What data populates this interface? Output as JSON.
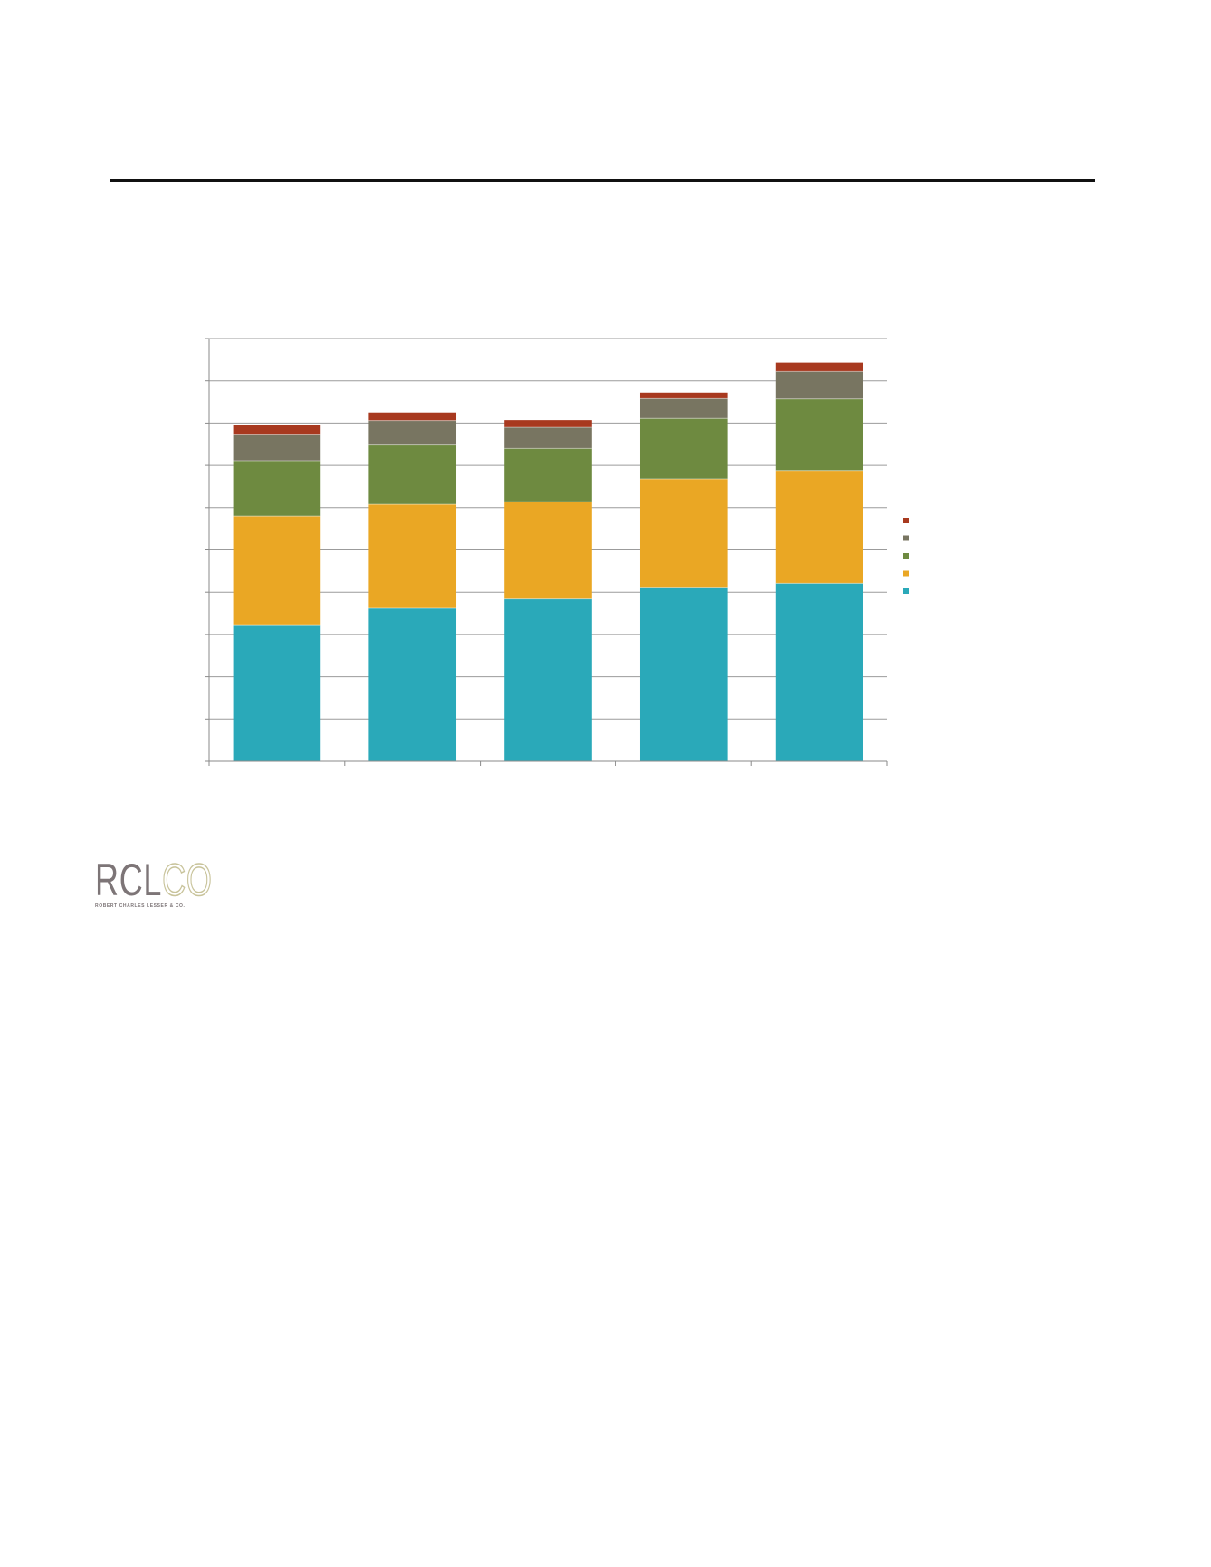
{
  "logo": {
    "mark_main": "RCL",
    "mark_accent": "CO",
    "tagline": "ROBERT CHARLES LESSER & CO."
  },
  "chart_data": {
    "type": "bar",
    "stacked": true,
    "categories": [
      "",
      "",
      "",
      "",
      ""
    ],
    "ylim": [
      0,
      100
    ],
    "grid": true,
    "legend": "right",
    "series": [
      {
        "color": "#2aa9b9",
        "values": [
          32.3,
          36.2,
          38.4,
          41.2,
          42.1
        ]
      },
      {
        "color": "#eaa724",
        "values": [
          25.7,
          24.6,
          23.0,
          25.6,
          26.7
        ]
      },
      {
        "color": "#6e8a40",
        "values": [
          13.1,
          14.0,
          12.6,
          14.3,
          16.9
        ]
      },
      {
        "color": "#787561",
        "values": [
          6.3,
          5.8,
          5.0,
          4.7,
          6.5
        ]
      },
      {
        "color": "#a8391f",
        "values": [
          2.1,
          1.9,
          1.7,
          1.4,
          2.1
        ]
      }
    ]
  }
}
